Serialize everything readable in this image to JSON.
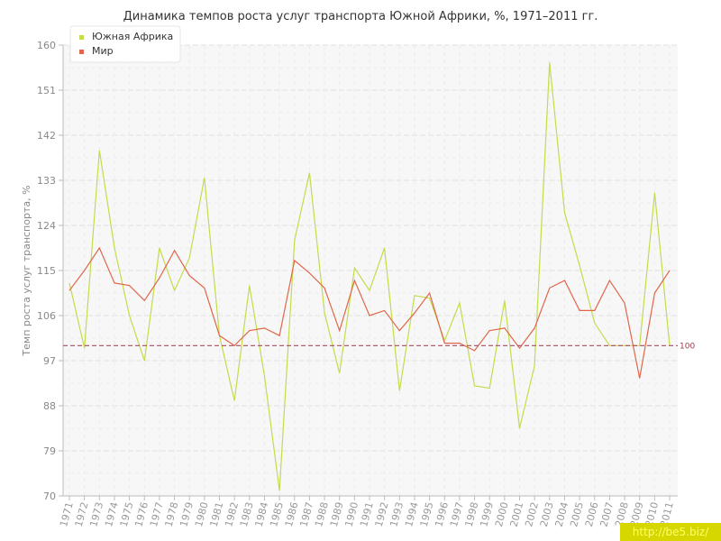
{
  "chart_data": {
    "type": "line",
    "title": "Динамика темпов роста услуг транспорта Южной Африки, %, 1971–2011 гг.",
    "ylabel": "Темп роста услуг транспорта, %",
    "xlabel": "",
    "ylim": [
      70,
      160
    ],
    "yticks": [
      "70",
      "79",
      "88",
      "97",
      "106",
      "115",
      "124",
      "133",
      "142",
      "151",
      "160"
    ],
    "categories": [
      "1971",
      "1972",
      "1973",
      "1974",
      "1975",
      "1976",
      "1977",
      "1978",
      "1979",
      "1980",
      "1981",
      "1982",
      "1983",
      "1984",
      "1985",
      "1986",
      "1987",
      "1988",
      "1989",
      "1990",
      "1991",
      "1992",
      "1993",
      "1994",
      "1995",
      "1996",
      "1997",
      "1998",
      "1999",
      "2000",
      "2001",
      "2002",
      "2003",
      "2004",
      "2005",
      "2006",
      "2007",
      "2008",
      "2009",
      "2010",
      "2011"
    ],
    "series": [
      {
        "name": "Южная Африка",
        "color": "#c3dc4a",
        "values": [
          112.5,
          99.5,
          139,
          119.5,
          106,
          97,
          119.5,
          111,
          117.5,
          133.5,
          102,
          89,
          112,
          94,
          71,
          121,
          134.5,
          106.5,
          94.5,
          115.5,
          111,
          119.5,
          91,
          110,
          109.5,
          101,
          108.5,
          92,
          91.5,
          109,
          83.5,
          96,
          156.5,
          126.5,
          116,
          104.5,
          100,
          100,
          100,
          130.5,
          100
        ]
      },
      {
        "name": "Мир",
        "color": "#e0674a",
        "values": [
          111,
          115,
          119.5,
          112.5,
          112,
          109,
          113.5,
          119,
          114,
          111.5,
          102,
          100,
          103,
          103.5,
          102,
          117,
          114.5,
          111.5,
          103,
          113,
          106,
          107,
          103,
          106.5,
          110.5,
          100.5,
          100.5,
          99,
          103,
          103.5,
          99.5,
          103.5,
          111.5,
          113,
          107,
          107,
          113,
          108.5,
          93.5,
          110.5,
          115
        ]
      }
    ],
    "reference_line": {
      "value": 100,
      "label": "100",
      "color": "#a05060"
    },
    "grid": true,
    "legend": "top-left"
  },
  "watermark": "http://be5.biz/"
}
